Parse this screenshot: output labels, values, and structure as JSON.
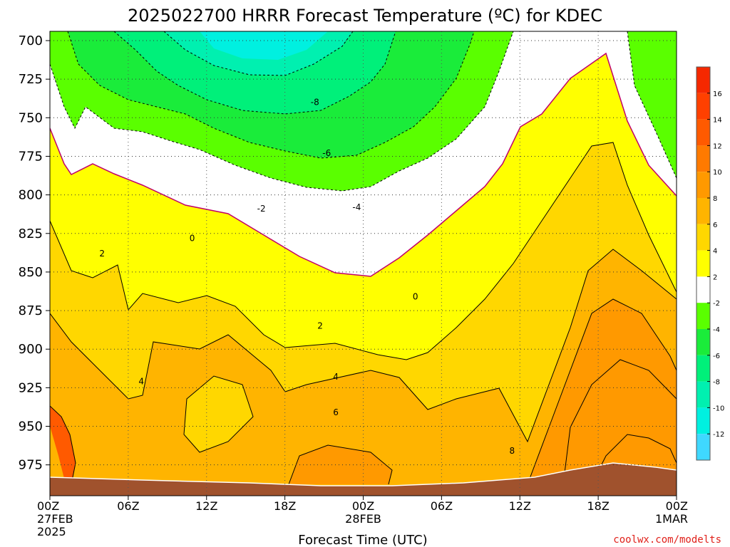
{
  "chart_data": {
    "type": "contour",
    "title": "2025022700 HRRR Forecast Temperature (ºC) for KDEC",
    "xlabel": "Forecast Time (UTC)",
    "credit": "coolwx.com/modelts",
    "y_axis": {
      "label": "",
      "inverted": true,
      "ylim": [
        694,
        995
      ],
      "ticks": [
        700,
        725,
        750,
        775,
        800,
        825,
        850,
        875,
        900,
        925,
        950,
        975
      ]
    },
    "x_axis": {
      "xlim": [
        0,
        48
      ],
      "ticks": [
        {
          "hour": 0,
          "lines": [
            "00Z",
            "27FEB",
            "2025"
          ]
        },
        {
          "hour": 6,
          "lines": [
            "06Z"
          ]
        },
        {
          "hour": 12,
          "lines": [
            "12Z"
          ]
        },
        {
          "hour": 18,
          "lines": [
            "18Z"
          ]
        },
        {
          "hour": 24,
          "lines": [
            "00Z",
            "28FEB"
          ]
        },
        {
          "hour": 30,
          "lines": [
            "06Z"
          ]
        },
        {
          "hour": 36,
          "lines": [
            "12Z"
          ]
        },
        {
          "hour": 42,
          "lines": [
            "18Z"
          ]
        },
        {
          "hour": 48,
          "lines": [
            "00Z",
            "1MAR"
          ]
        }
      ]
    },
    "grid": true,
    "colorbar": {
      "position": "right",
      "bands": [
        {
          "lo": -14,
          "hi": -12,
          "color": "#3fd8ff"
        },
        {
          "lo": -12,
          "hi": -10,
          "color": "#00f0e0"
        },
        {
          "lo": -10,
          "hi": -8,
          "color": "#00f0b0"
        },
        {
          "lo": -8,
          "hi": -6,
          "color": "#00f07a"
        },
        {
          "lo": -6,
          "hi": -4,
          "color": "#1aec3a"
        },
        {
          "lo": -4,
          "hi": -2,
          "color": "#5aff00"
        },
        {
          "lo": -2,
          "hi": 2,
          "color": "#ffffff"
        },
        {
          "lo": 2,
          "hi": 4,
          "color": "#ffff00"
        },
        {
          "lo": 4,
          "hi": 6,
          "color": "#ffd700"
        },
        {
          "lo": 6,
          "hi": 8,
          "color": "#ffb400"
        },
        {
          "lo": 8,
          "hi": 10,
          "color": "#ff9900"
        },
        {
          "lo": 10,
          "hi": 12,
          "color": "#ff7a00"
        },
        {
          "lo": 12,
          "hi": 14,
          "color": "#ff5a00"
        },
        {
          "lo": 14,
          "hi": 16,
          "color": "#ff4000"
        },
        {
          "lo": 16,
          "hi": 18,
          "color": "#f52800"
        }
      ],
      "tick_labels": [
        "16",
        "14",
        "12",
        "10",
        "8",
        "6",
        "4",
        "2",
        "-2",
        "-4",
        "-6",
        "-8",
        "-10",
        "-12"
      ]
    },
    "ground_color": "#a0522d",
    "contour_labels": [
      {
        "text": "-8",
        "hour": 20.3,
        "p": 740
      },
      {
        "text": "-6",
        "hour": 21.2,
        "p": 773
      },
      {
        "text": "-4",
        "hour": 23.5,
        "p": 808
      },
      {
        "text": "-2",
        "hour": 16.2,
        "p": 809
      },
      {
        "text": "0",
        "hour": 10.9,
        "p": 828
      },
      {
        "text": "0",
        "hour": 28.0,
        "p": 866
      },
      {
        "text": "2",
        "hour": 4.0,
        "p": 838
      },
      {
        "text": "2",
        "hour": 20.7,
        "p": 885
      },
      {
        "text": "4",
        "hour": 21.9,
        "p": 918
      },
      {
        "text": "4",
        "hour": 7.0,
        "p": 921
      },
      {
        "text": "6",
        "hour": 21.9,
        "p": 941
      },
      {
        "text": "8",
        "hour": 35.4,
        "p": 966
      }
    ]
  }
}
